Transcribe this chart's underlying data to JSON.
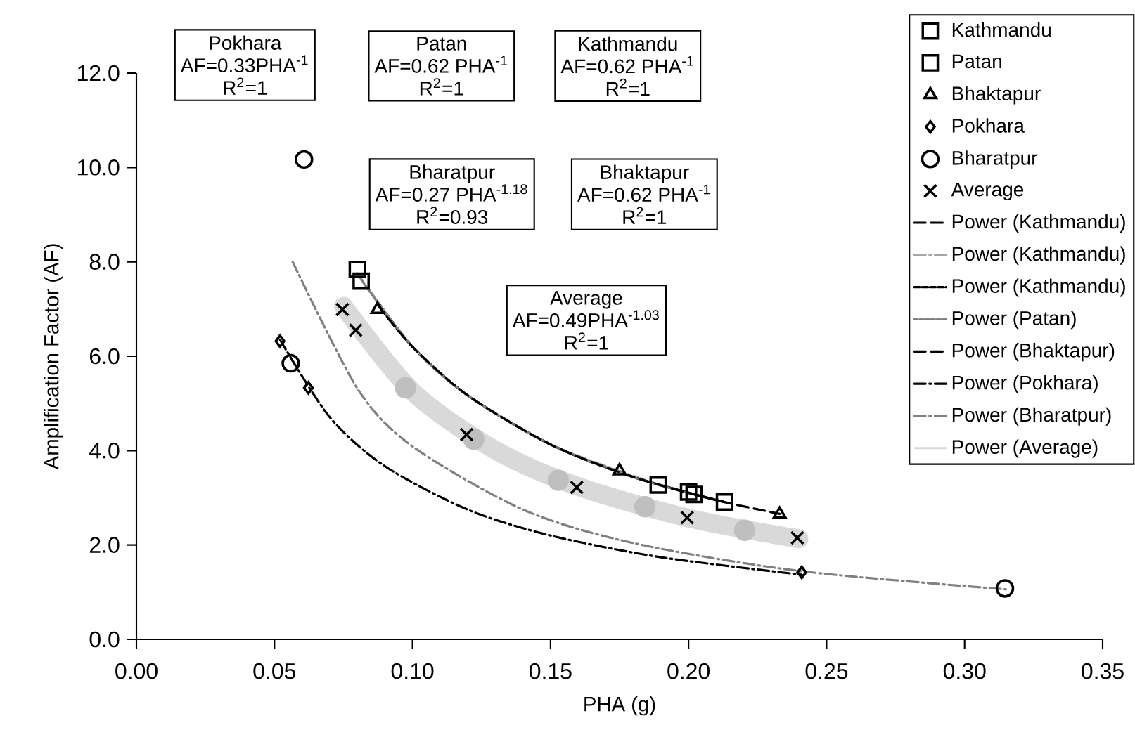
{
  "chart_data": {
    "type": "scatter",
    "xlabel": "PHA (g)",
    "ylabel": "Amplification Factor (AF)",
    "xlim": [
      0,
      0.35
    ],
    "ylim": [
      0,
      12
    ],
    "xticks": [
      {
        "value": 0,
        "label": "0.00"
      },
      {
        "value": 0.05,
        "label": "0.05"
      },
      {
        "value": 0.1,
        "label": "0.10"
      },
      {
        "value": 0.15,
        "label": "0.15"
      },
      {
        "value": 0.2,
        "label": "0.20"
      },
      {
        "value": 0.25,
        "label": "0.25"
      },
      {
        "value": 0.3,
        "label": "0.30"
      },
      {
        "value": 0.35,
        "label": "0.35"
      }
    ],
    "yticks": [
      {
        "value": 0,
        "label": "0.0"
      },
      {
        "value": 2,
        "label": "2.0"
      },
      {
        "value": 4,
        "label": "4.0"
      },
      {
        "value": 6,
        "label": "6.0"
      },
      {
        "value": 8,
        "label": "8.0"
      },
      {
        "value": 10,
        "label": "10.0"
      },
      {
        "value": 12,
        "label": "12.0"
      }
    ],
    "grid": false,
    "legend": "top right",
    "series": [
      {
        "type": "line",
        "name": "Power (Average)",
        "color": "#d9d9d9",
        "line_style": "solid",
        "marker": "none",
        "x": [
          0.075,
          0.1,
          0.13,
          0.16,
          0.2,
          0.24
        ],
        "values": [
          7.06,
          5.25,
          4.01,
          3.24,
          2.57,
          2.13
        ]
      },
      {
        "color": "#bfbfbf",
        "marker": "circle",
        "x": [
          0.0975,
          0.1222,
          0.1528,
          0.1842,
          0.2203
        ],
        "values": [
          5.33,
          4.24,
          3.37,
          2.81,
          2.31
        ]
      },
      {
        "name": "Kathmandu",
        "color": "#000000",
        "marker": "square",
        "x": [
          0.08,
          0.202,
          0.213
        ],
        "values": [
          7.84,
          3.07,
          2.91
        ]
      },
      {
        "name": "Patan",
        "color": "#000000",
        "marker": "square",
        "x": [
          0.0814,
          0.189,
          0.2
        ],
        "values": [
          7.59,
          3.27,
          3.12
        ]
      },
      {
        "name": "Bhaktapur",
        "color": "#000000",
        "marker": "triangle",
        "x": [
          0.0873,
          0.175,
          0.233
        ],
        "values": [
          6.99,
          3.57,
          2.65
        ]
      },
      {
        "name": "Pokhara",
        "color": "#000000",
        "marker": "diamond",
        "x": [
          0.052,
          0.0623,
          0.241
        ],
        "values": [
          6.32,
          5.33,
          1.42
        ]
      },
      {
        "name": "Bharatpur",
        "color": "#000000",
        "marker": "circle",
        "x": [
          0.0607,
          0.0559,
          0.3146
        ],
        "values": [
          10.17,
          5.85,
          1.08
        ]
      },
      {
        "name": "Average",
        "color": "#000000",
        "marker": "cross",
        "x": [
          0.0746,
          0.0794,
          0.1196,
          0.1595,
          0.1995,
          0.2394
        ],
        "values": [
          6.99,
          6.55,
          4.34,
          3.22,
          2.58,
          2.15
        ]
      },
      {
        "type": "line",
        "name": "Power (Kathmandu)",
        "color": "#000000",
        "line_style": "dashed",
        "marker": "none",
        "x": [
          0.08,
          0.1,
          0.12,
          0.15,
          0.18,
          0.213
        ],
        "values": [
          7.75,
          6.2,
          5.17,
          4.13,
          3.44,
          2.91
        ]
      },
      {
        "type": "line",
        "name": "Power (Kathmandu)",
        "color": "#a6a6a6",
        "line_style": "dashdotted",
        "marker": "none",
        "x": [
          0.08,
          0.1,
          0.12,
          0.15,
          0.189
        ],
        "values": [
          7.75,
          6.2,
          5.17,
          4.13,
          3.28
        ]
      },
      {
        "type": "line",
        "name": "Power (Kathmandu)",
        "color": "#000000",
        "line_style": "densely dashed",
        "marker": "none",
        "x": [
          0.0873,
          0.1,
          0.12,
          0.15,
          0.18,
          0.213
        ],
        "values": [
          7.1,
          6.2,
          5.17,
          4.13,
          3.44,
          2.91
        ]
      },
      {
        "type": "line",
        "name": "Power (Patan)",
        "color": "#808080",
        "line_style": "dotted",
        "marker": "none",
        "x": [
          0.0814,
          0.1,
          0.12,
          0.15,
          0.18,
          0.2
        ],
        "values": [
          7.62,
          6.2,
          5.17,
          4.13,
          3.44,
          3.1
        ]
      },
      {
        "type": "line",
        "name": "Power (Bhaktapur)",
        "color": "#000000",
        "line_style": "dashed",
        "marker": "none",
        "x": [
          0.0873,
          0.1,
          0.12,
          0.15,
          0.18,
          0.21,
          0.233
        ],
        "values": [
          7.1,
          6.2,
          5.17,
          4.13,
          3.44,
          2.95,
          2.66
        ]
      },
      {
        "type": "line",
        "name": "Power (Pokhara)",
        "color": "#000000",
        "line_style": "dashdotted",
        "marker": "none",
        "x": [
          0.052,
          0.07,
          0.09,
          0.12,
          0.15,
          0.19,
          0.241
        ],
        "values": [
          6.35,
          4.71,
          3.67,
          2.75,
          2.2,
          1.74,
          1.37
        ]
      },
      {
        "type": "line",
        "name": "Power (Bharatpur)",
        "color": "#808080",
        "line_style": "dashdotted",
        "marker": "none",
        "x": [
          0.0566,
          0.08,
          0.1,
          0.14,
          0.18,
          0.24,
          0.315
        ],
        "values": [
          8.0,
          5.32,
          4.09,
          2.75,
          2.04,
          1.45,
          1.06
        ]
      }
    ],
    "annotations": [
      "Pokhara",
      "AF=0.33PHA$^{-1}$",
      "R$^{2}$=1",
      "Patan",
      "AF=0.62 PHA$^{-1}$",
      "R$^{2}$=1",
      "Kathmandu",
      "AF=0.62 PHA$^{-1}$",
      "R$^{2}$=1",
      "Bharatpur",
      "AF=0.27 PHA$^{-1.18}$",
      "R$^{2}$=0.93",
      "Bhaktapur",
      "AF=0.62 PHA$^{-1}$",
      "R$^{2}$=1",
      "Average",
      "AF=0.49PHA$^{-1.03}$",
      "R$^{2}$=1"
    ]
  }
}
